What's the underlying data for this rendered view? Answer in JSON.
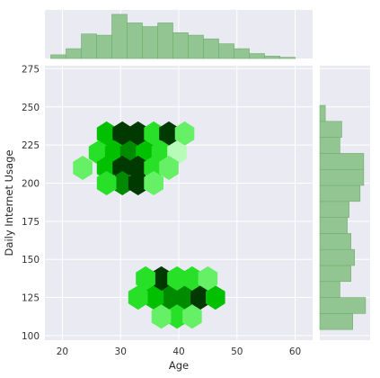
{
  "chart_data": [
    {
      "type": "hexbin",
      "xlabel": "Age",
      "ylabel": "Daily Internet Usage",
      "xlim": [
        17,
        63
      ],
      "ylim": [
        97,
        277
      ],
      "xticks": [
        20,
        30,
        40,
        50,
        60
      ],
      "yticks": [
        100,
        125,
        150,
        175,
        200,
        225,
        250,
        275
      ],
      "grid": true,
      "color": "#00b000",
      "cells": [
        {
          "x": 27.6,
          "y": 232.5,
          "count": 5
        },
        {
          "x": 30.3,
          "y": 232.5,
          "count": 7
        },
        {
          "x": 33.0,
          "y": 232.5,
          "count": 8
        },
        {
          "x": 35.7,
          "y": 232.5,
          "count": 4
        },
        {
          "x": 38.3,
          "y": 232.5,
          "count": 7
        },
        {
          "x": 41.0,
          "y": 232.5,
          "count": 3
        },
        {
          "x": 26.2,
          "y": 220.0,
          "count": 4
        },
        {
          "x": 29.0,
          "y": 220.0,
          "count": 5
        },
        {
          "x": 31.6,
          "y": 220.0,
          "count": 6
        },
        {
          "x": 34.3,
          "y": 220.0,
          "count": 5
        },
        {
          "x": 37.0,
          "y": 220.0,
          "count": 4
        },
        {
          "x": 39.7,
          "y": 220.0,
          "count": 2
        },
        {
          "x": 27.6,
          "y": 210.0,
          "count": 5
        },
        {
          "x": 30.3,
          "y": 210.0,
          "count": 8
        },
        {
          "x": 33.0,
          "y": 210.0,
          "count": 8
        },
        {
          "x": 35.7,
          "y": 210.0,
          "count": 4
        },
        {
          "x": 38.3,
          "y": 210.0,
          "count": 3
        },
        {
          "x": 23.5,
          "y": 210.0,
          "count": 3
        },
        {
          "x": 30.3,
          "y": 200.0,
          "count": 6
        },
        {
          "x": 33.0,
          "y": 200.0,
          "count": 7
        },
        {
          "x": 27.6,
          "y": 200.0,
          "count": 4
        },
        {
          "x": 35.7,
          "y": 200.0,
          "count": 3
        },
        {
          "x": 38.3,
          "y": 125.0,
          "count": 6
        },
        {
          "x": 35.7,
          "y": 125.0,
          "count": 5
        },
        {
          "x": 41.0,
          "y": 125.0,
          "count": 6
        },
        {
          "x": 43.7,
          "y": 125.0,
          "count": 7
        },
        {
          "x": 46.3,
          "y": 125.0,
          "count": 5
        },
        {
          "x": 33.0,
          "y": 125.0,
          "count": 4
        },
        {
          "x": 37.0,
          "y": 137.5,
          "count": 8
        },
        {
          "x": 39.7,
          "y": 137.5,
          "count": 4
        },
        {
          "x": 42.3,
          "y": 137.5,
          "count": 4
        },
        {
          "x": 34.3,
          "y": 137.5,
          "count": 4
        },
        {
          "x": 45.0,
          "y": 137.5,
          "count": 3
        },
        {
          "x": 39.7,
          "y": 112.5,
          "count": 4
        },
        {
          "x": 42.3,
          "y": 112.5,
          "count": 3
        },
        {
          "x": 37.0,
          "y": 112.5,
          "count": 3
        }
      ]
    },
    {
      "type": "bar",
      "position": "top",
      "xlabel": "",
      "ylabel": "",
      "xlim": [
        17,
        63
      ],
      "bin_edges": [
        18,
        20.625,
        23.25,
        25.875,
        28.5,
        31.125,
        33.75,
        36.375,
        39.0,
        41.625,
        44.25,
        46.875,
        49.5,
        52.125,
        54.75,
        57.375,
        60.0
      ],
      "values": [
        6,
        16,
        40,
        38,
        72,
        58,
        52,
        58,
        42,
        38,
        32,
        24,
        16,
        8,
        4,
        2
      ]
    },
    {
      "type": "bar",
      "position": "right",
      "orientation": "horizontal",
      "xlabel": "",
      "ylabel": "",
      "ylim": [
        97,
        277
      ],
      "bin_edges": [
        104,
        114.5,
        125.0,
        135.5,
        146.0,
        156.5,
        167.0,
        177.5,
        188.0,
        198.5,
        209.0,
        219.5,
        230.0,
        240.5,
        251.0,
        261.5,
        272.0
      ],
      "values": [
        36,
        50,
        22,
        34,
        38,
        34,
        30,
        32,
        44,
        48,
        48,
        22,
        24,
        6,
        0,
        0
      ]
    }
  ]
}
